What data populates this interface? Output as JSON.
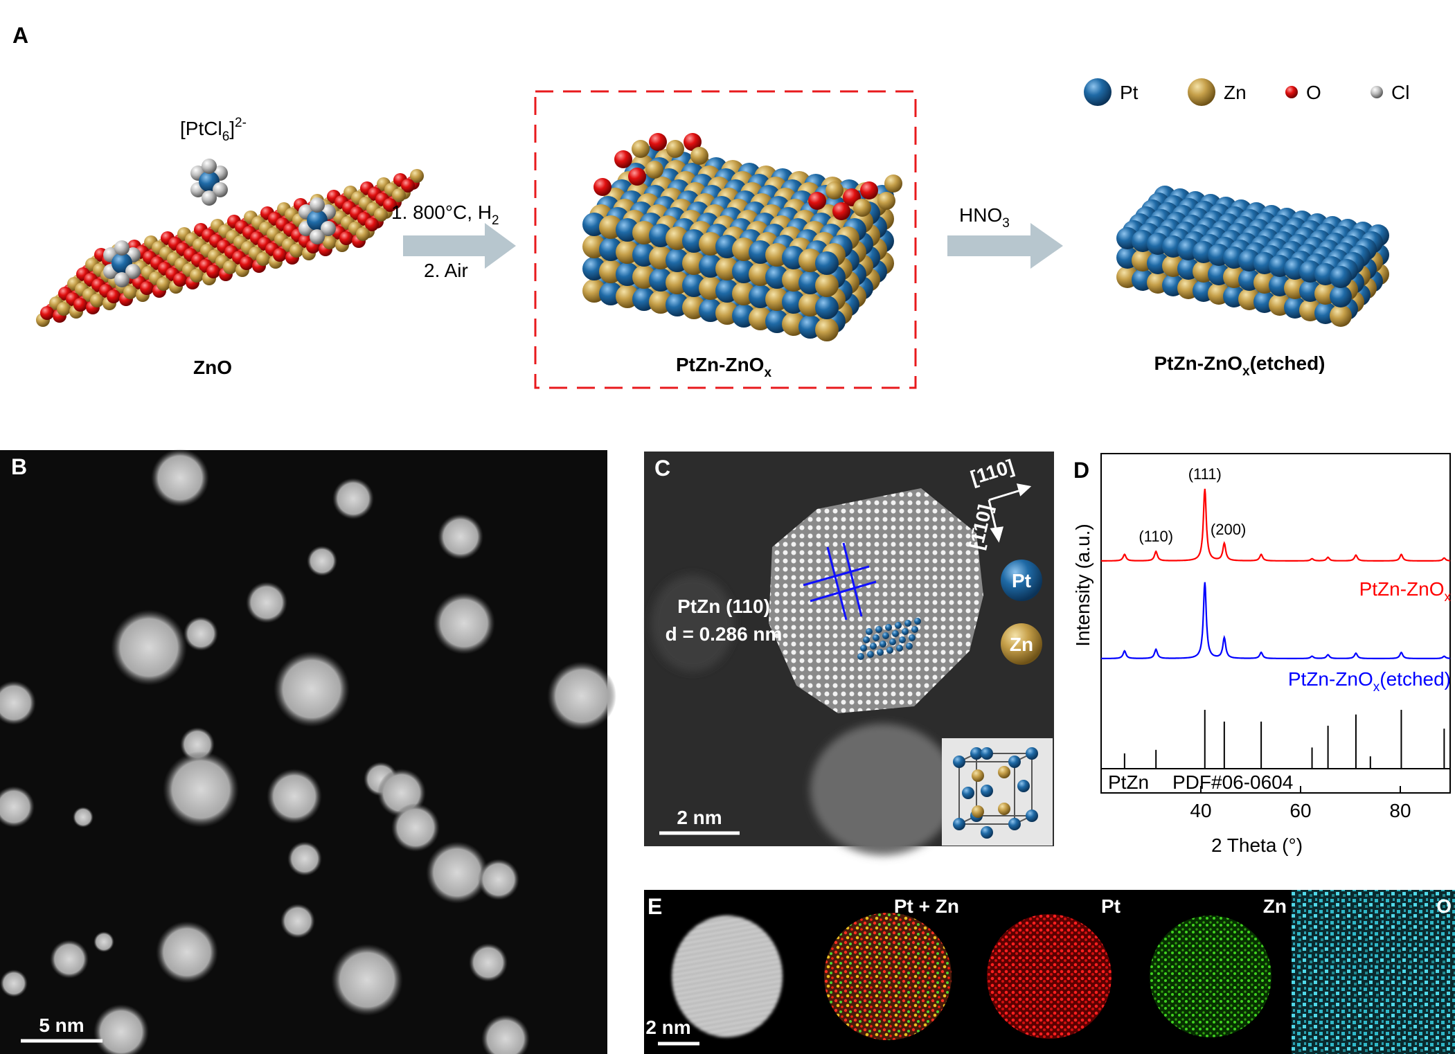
{
  "panel_A": {
    "label": "A",
    "legend": [
      "Pt",
      "Zn",
      "O",
      "Cl"
    ],
    "precursor": {
      "main": "[PtCl",
      "sub": "6",
      "close": "]",
      "sup": "2-"
    },
    "step1": {
      "main": "1. 800°C, H",
      "sub": "2"
    },
    "step2": "2. Air",
    "step3": {
      "main": "HNO",
      "sub": "3"
    },
    "support": "ZnO",
    "catalyst": {
      "main": "PtZn-ZnO",
      "sub": "x"
    },
    "etched": {
      "main": "PtZn-ZnO",
      "sub": "x",
      "suffix": "(etched)"
    }
  },
  "panel_B": {
    "label": "B",
    "scale_bar": "5 nm"
  },
  "panel_C": {
    "label": "C",
    "plane": "PtZn (110)",
    "spacing": "d = 0.286 nm",
    "directions": [
      "[110]",
      "[1̄10]"
    ],
    "legend": [
      "Pt",
      "Zn"
    ],
    "scale_bar": "2 nm"
  },
  "panel_D": {
    "label": "D",
    "type": "line",
    "x_label": "2 Theta (°)",
    "y_label": "Intensity (a.u.)",
    "xlim": [
      20,
      90
    ],
    "xticks": [
      40,
      60,
      80
    ],
    "series": [
      {
        "name": "PtZn-ZnO",
        "name_sub": "x",
        "color": "#ff0000",
        "x": [
          24.7,
          31.0,
          40.8,
          44.7,
          52.1,
          62.3,
          65.5,
          71.1,
          80.2,
          88.8
        ],
        "values": [
          9,
          13,
          100,
          24,
          9,
          3,
          5,
          8,
          9,
          4
        ]
      },
      {
        "name": "PtZn-ZnO",
        "name_sub": "x",
        "name_suffix": "(etched)",
        "color": "#0000ff",
        "x": [
          24.7,
          31.0,
          40.8,
          44.7,
          52.1,
          62.3,
          65.5,
          71.1,
          80.2,
          88.8
        ],
        "values": [
          10,
          12,
          100,
          27,
          8,
          3,
          5,
          7,
          8,
          3
        ]
      }
    ],
    "reference": {
      "name": "PtZn",
      "card": "PDF#06-0604",
      "color": "#000000",
      "x": [
        24.7,
        31.0,
        40.8,
        44.7,
        52.1,
        62.3,
        65.5,
        71.1,
        74.0,
        80.2,
        88.8
      ],
      "values": [
        26,
        32,
        100,
        80,
        80,
        36,
        73,
        92,
        21,
        100,
        68
      ]
    },
    "peak_labels": [
      {
        "text": "(110)",
        "x": 31.0
      },
      {
        "text": "(111)",
        "x": 40.8
      },
      {
        "text": "(200)",
        "x": 45.5
      }
    ]
  },
  "panel_E": {
    "label": "E",
    "maps": [
      "Pt + Zn",
      "Pt",
      "Zn",
      "O"
    ],
    "scale_bar": "2 nm"
  }
}
